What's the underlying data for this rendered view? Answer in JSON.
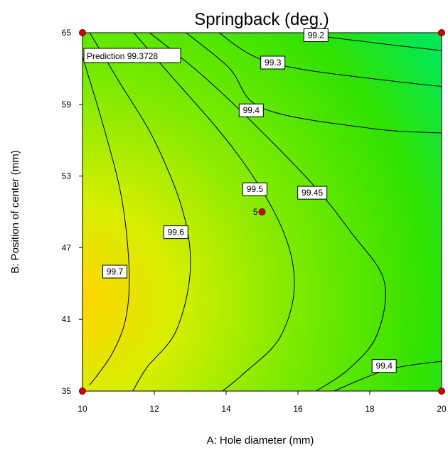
{
  "chart_data": {
    "type": "contour",
    "title": "Springback (deg.)",
    "xlabel": "A: Hole diameter (mm)",
    "ylabel": "B: Position of center (mm)",
    "xlim": [
      10,
      20
    ],
    "ylim": [
      35,
      65
    ],
    "x_ticks": [
      "10",
      "12",
      "14",
      "16",
      "18",
      "20"
    ],
    "y_ticks": [
      "35",
      "41",
      "47",
      "53",
      "59",
      "65"
    ],
    "colors": {
      "high": "#ffd700",
      "mid": "#7cf000",
      "low": "#00e860",
      "line": "#000000",
      "point": "#cc0000"
    },
    "contours": [
      {
        "level": "99.7",
        "points": [
          [
            10,
            63
          ],
          [
            10.6,
            57
          ],
          [
            11.1,
            51
          ],
          [
            11.3,
            45
          ],
          [
            11.2,
            41
          ],
          [
            10.8,
            38
          ],
          [
            10.2,
            35.5
          ]
        ],
        "label_at": [
          10.9,
          45
        ]
      },
      {
        "level": "99.6",
        "points": [
          [
            10,
            66
          ],
          [
            11,
            61
          ],
          [
            12,
            56
          ],
          [
            12.8,
            50
          ],
          [
            13,
            45
          ],
          [
            12.6,
            40
          ],
          [
            11.8,
            37
          ],
          [
            11.4,
            35
          ]
        ],
        "label_at": [
          12.6,
          48.3
        ]
      },
      {
        "level": "99.5",
        "points": [
          [
            10,
            70
          ],
          [
            12,
            63
          ],
          [
            14.2,
            55.3
          ],
          [
            15.5,
            49
          ],
          [
            15.9,
            44
          ],
          [
            15.5,
            39.5
          ],
          [
            14.5,
            36.5
          ],
          [
            13.9,
            35
          ]
        ],
        "label_at": [
          14.8,
          51.9
        ]
      },
      {
        "level": "99.45",
        "points": [
          [
            11,
            67
          ],
          [
            13.5,
            61
          ],
          [
            16.2,
            53
          ],
          [
            17.5,
            48.2
          ],
          [
            18.4,
            44.2
          ],
          [
            18.2,
            39.7
          ],
          [
            17.4,
            36.8
          ],
          [
            16.5,
            35
          ]
        ],
        "label_at": [
          16.4,
          51.6
        ]
      },
      {
        "level": "99.4",
        "points": [
          [
            12,
            67
          ],
          [
            14,
            62.3
          ],
          [
            15,
            58.7
          ],
          [
            18,
            57
          ],
          [
            20,
            56.6
          ]
        ],
        "label_at": [
          14.7,
          58.5
        ]
      },
      {
        "level": "99.3",
        "points": [
          [
            13,
            67
          ],
          [
            14.6,
            63.3
          ],
          [
            16,
            62
          ],
          [
            18.5,
            61
          ],
          [
            20,
            60.5
          ]
        ],
        "label_at": [
          15.3,
          62.5
        ]
      },
      {
        "level": "99.2",
        "points": [
          [
            14,
            67
          ],
          [
            16.2,
            65
          ],
          [
            18,
            64.2
          ],
          [
            20,
            63.5
          ]
        ],
        "label_at": [
          16.5,
          64.8
        ]
      },
      {
        "level": "99.4",
        "points": [
          [
            17,
            35
          ],
          [
            18.5,
            36.8
          ],
          [
            20,
            37.5
          ]
        ],
        "label_at": [
          18.4,
          37.1
        ]
      }
    ],
    "design_points": [
      {
        "x": 10,
        "y": 35,
        "label": ""
      },
      {
        "x": 20,
        "y": 35,
        "label": ""
      },
      {
        "x": 10,
        "y": 65,
        "label": ""
      },
      {
        "x": 20,
        "y": 65,
        "label": ""
      },
      {
        "x": 15,
        "y": 50,
        "label": "5"
      }
    ],
    "annotation": "Prediction 99.3728"
  }
}
